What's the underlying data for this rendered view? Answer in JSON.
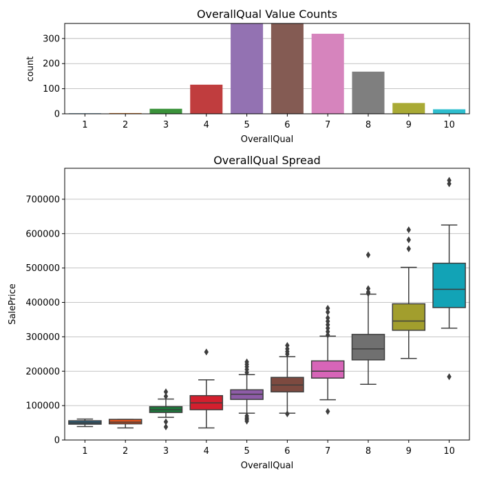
{
  "chart_data": [
    {
      "type": "bar",
      "title": "OverallQual Value Counts",
      "xlabel": "OverallQual",
      "ylabel": "count",
      "categories": [
        "1",
        "2",
        "3",
        "4",
        "5",
        "6",
        "7",
        "8",
        "9",
        "10"
      ],
      "values": [
        2,
        3,
        20,
        116,
        397,
        374,
        319,
        168,
        43,
        18
      ],
      "ylim": [
        0,
        360
      ],
      "yticks": [
        0,
        100,
        200,
        300
      ],
      "grid": "y",
      "colors": [
        "#3274a1",
        "#e1812c",
        "#3a923a",
        "#c03d3e",
        "#9372b2",
        "#845b53",
        "#d684bd",
        "#7f7f7f",
        "#a9aa35",
        "#2ebece"
      ]
    },
    {
      "type": "box",
      "title": "OverallQual Spread",
      "xlabel": "OverallQual",
      "ylabel": "SalePrice",
      "categories": [
        "1",
        "2",
        "3",
        "4",
        "5",
        "6",
        "7",
        "8",
        "9",
        "10"
      ],
      "ylim": [
        0,
        790000
      ],
      "yticks": [
        0,
        100000,
        200000,
        300000,
        400000,
        500000,
        600000,
        700000
      ],
      "grid": "y",
      "colors": [
        "#2b5f7c",
        "#e4531c",
        "#1b7a3a",
        "#d31f2e",
        "#8e5ca7",
        "#7d4a40",
        "#d765b8",
        "#707070",
        "#a29e2d",
        "#12a3b6"
      ],
      "boxes": [
        {
          "whislo": 39000,
          "q1": 46000,
          "med": 50000,
          "q3": 56000,
          "whishi": 61000,
          "fliers": []
        },
        {
          "whislo": 35000,
          "q1": 47000,
          "med": 52000,
          "q3": 60000,
          "whishi": 60000,
          "fliers": []
        },
        {
          "whislo": 66000,
          "q1": 80000,
          "med": 88000,
          "q3": 97000,
          "whishi": 119000,
          "fliers": [
            38000,
            53000,
            127000,
            140000
          ]
        },
        {
          "whislo": 35000,
          "q1": 88000,
          "med": 108000,
          "q3": 129000,
          "whishi": 175000,
          "fliers": [
            256000
          ]
        },
        {
          "whislo": 78000,
          "q1": 118000,
          "med": 133000,
          "q3": 146000,
          "whishi": 190000,
          "fliers": [
            55000,
            60000,
            64000,
            70000,
            196000,
            205000,
            213000,
            220000,
            227000
          ]
        },
        {
          "whislo": 78000,
          "q1": 140000,
          "med": 160000,
          "q3": 182000,
          "whishi": 242000,
          "fliers": [
            76000,
            250000,
            257000,
            265000,
            275000
          ]
        },
        {
          "whislo": 117000,
          "q1": 180000,
          "med": 200000,
          "q3": 230000,
          "whishi": 302000,
          "fliers": [
            83000,
            305000,
            315000,
            325000,
            335000,
            345000,
            355000,
            372000,
            383000
          ]
        },
        {
          "whislo": 162000,
          "q1": 233000,
          "med": 265000,
          "q3": 307000,
          "whishi": 424000,
          "fliers": [
            426000,
            430000,
            440000,
            538000
          ]
        },
        {
          "whislo": 237000,
          "q1": 319000,
          "med": 346000,
          "q3": 396000,
          "whishi": 502000,
          "fliers": [
            556000,
            582000,
            611000
          ]
        },
        {
          "whislo": 325000,
          "q1": 385000,
          "med": 438000,
          "q3": 514000,
          "whishi": 625000,
          "fliers": [
            184000,
            745000,
            755000
          ]
        }
      ]
    }
  ]
}
